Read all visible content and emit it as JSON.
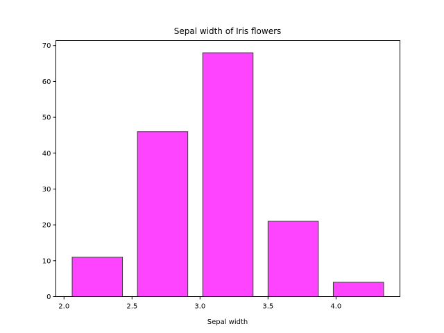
{
  "chart_data": {
    "type": "bar",
    "title": "Sepal width of Iris flowers",
    "xlabel": "Sepal width",
    "ylabel": "",
    "bins": [
      {
        "x_start": 2.06,
        "x_end": 2.43,
        "count": 11
      },
      {
        "x_start": 2.54,
        "x_end": 2.91,
        "count": 46
      },
      {
        "x_start": 3.02,
        "x_end": 3.39,
        "count": 68
      },
      {
        "x_start": 3.5,
        "x_end": 3.87,
        "count": 21
      },
      {
        "x_start": 3.98,
        "x_end": 4.35,
        "count": 4
      }
    ],
    "xlim": [
      1.94,
      4.47
    ],
    "ylim": [
      0,
      71.4
    ],
    "xticks": [
      {
        "value": 2.0,
        "label": "2.0"
      },
      {
        "value": 2.5,
        "label": "2.5"
      },
      {
        "value": 3.0,
        "label": "3.0"
      },
      {
        "value": 3.5,
        "label": "3.5"
      },
      {
        "value": 4.0,
        "label": "4.0"
      }
    ],
    "yticks": [
      {
        "value": 0,
        "label": "0"
      },
      {
        "value": 10,
        "label": "10"
      },
      {
        "value": 20,
        "label": "20"
      },
      {
        "value": 30,
        "label": "30"
      },
      {
        "value": 40,
        "label": "40"
      },
      {
        "value": 50,
        "label": "50"
      },
      {
        "value": 60,
        "label": "60"
      },
      {
        "value": 70,
        "label": "70"
      }
    ],
    "bar_color": "#ff44ff",
    "bar_edge_color": "#3a3a3a",
    "grid": false,
    "legend": "none"
  }
}
